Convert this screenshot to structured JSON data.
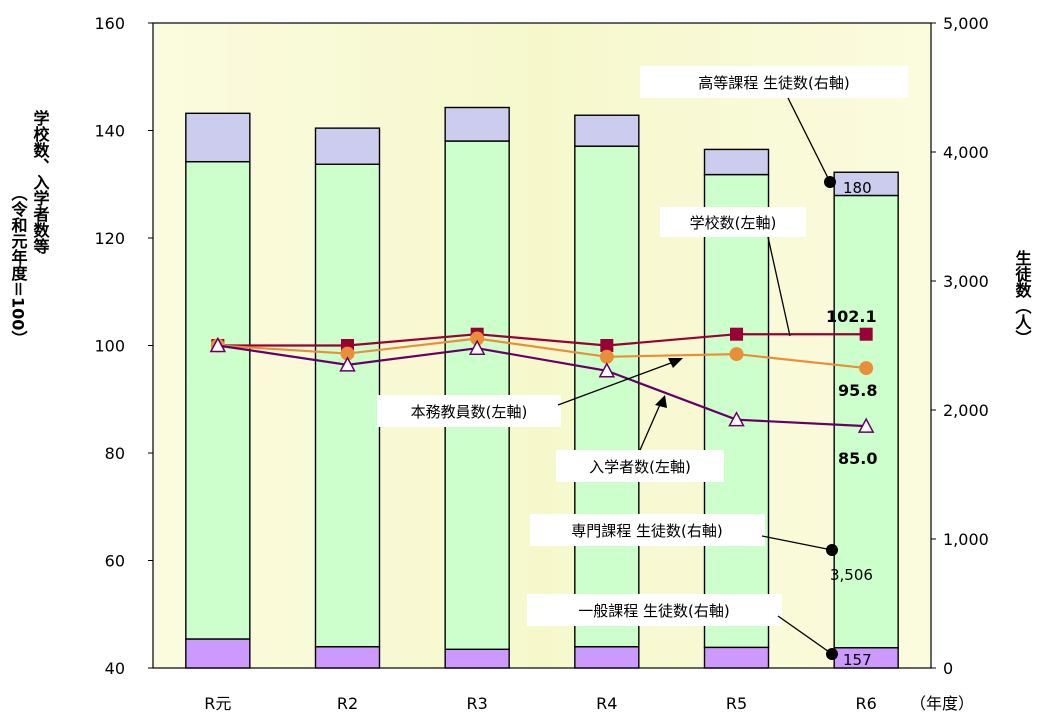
{
  "chart_data": {
    "type": "bar+line",
    "categories": [
      "R元",
      "R2",
      "R3",
      "R4",
      "R5",
      "R6"
    ],
    "x_unit": "（年度）",
    "left_axis": {
      "label": "学校数、入学者数等（令和元年度＝100）",
      "min": 40,
      "max": 160,
      "step": 20,
      "ticks": [
        "40",
        "60",
        "80",
        "100",
        "120",
        "140",
        "160"
      ]
    },
    "right_axis": {
      "label": "生徒数（人）",
      "min": 0,
      "max": 5000,
      "step": 1000,
      "ticks": [
        "0",
        "1,000",
        "2,000",
        "3,000",
        "4,000",
        "5,000"
      ]
    },
    "bar_series": [
      {
        "name": "一般課程 生徒数(右軸)",
        "axis": "right",
        "color": "#cc99ff",
        "values": [
          225,
          165,
          145,
          165,
          160,
          157
        ]
      },
      {
        "name": "専門課程 生徒数(右軸)",
        "axis": "right",
        "color": "#ccffcc",
        "values": [
          3700,
          3740,
          3940,
          3880,
          3665,
          3506
        ]
      },
      {
        "name": "高等課程 生徒数(右軸)",
        "axis": "right",
        "color": "#ccccee",
        "values": [
          375,
          280,
          260,
          240,
          195,
          180
        ]
      }
    ],
    "line_series": [
      {
        "name": "学校数(左軸)",
        "axis": "left",
        "color": "#990033",
        "marker": "square",
        "values": [
          100,
          100,
          102.1,
          100,
          102.1,
          102.1
        ]
      },
      {
        "name": "本務教員数(左軸)",
        "axis": "left",
        "color": "#e98f3a",
        "marker": "circle",
        "values": [
          100,
          98.5,
          101.3,
          97.9,
          98.4,
          95.8
        ]
      },
      {
        "name": "入学者数(左軸)",
        "axis": "left",
        "color": "#660066",
        "marker": "triangle",
        "values": [
          100,
          96.4,
          99.5,
          95.3,
          86.2,
          85.0
        ]
      }
    ],
    "data_labels": {
      "school": "102.1",
      "teachers": "95.8",
      "entrants": "85.0",
      "senmon": "3,506",
      "koutou": "180",
      "ippan": "157"
    },
    "plot_background": "#ffffcc"
  }
}
